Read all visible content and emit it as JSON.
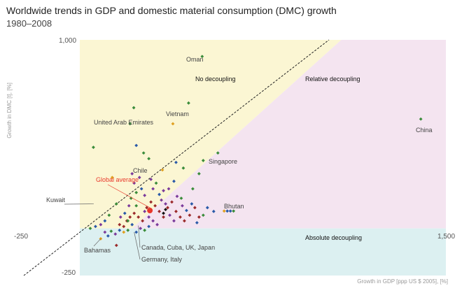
{
  "title": "Worldwide trends in GDP and domestic material consumption (DMC) growth",
  "subtitle": "1980–2008",
  "chart_data": {
    "type": "scatter",
    "title": "Worldwide trends in GDP and domestic material consumption (DMC) growth",
    "subtitle": "1980–2008",
    "xlabel": "Growth in GDP [ppp US $ 2005], [%]",
    "ylabel": "Growth in DMC [t], [%]",
    "xlim": [
      -250,
      1500
    ],
    "ylim": [
      -250,
      1000
    ],
    "x_ticks": [
      "-250",
      "1,500"
    ],
    "y_ticks": [
      "1,000",
      "-250"
    ],
    "regions": [
      {
        "label": "No decoupling",
        "color": "#fbf6d3"
      },
      {
        "label": "Relative decoupling",
        "color": "#f4e4f0"
      },
      {
        "label": "Absolute decoupling",
        "color": "#dcf0f1"
      }
    ],
    "reference_line": "GDP growth = DMC growth",
    "labeled_points": [
      {
        "label": "Oman",
        "x": 335,
        "y": 912
      },
      {
        "label": "Vietnam",
        "x": 270,
        "y": 665
      },
      {
        "label": "United Arab Emirates",
        "x": 8,
        "y": 640
      },
      {
        "label": "China",
        "x": 1380,
        "y": 580
      },
      {
        "label": "Singapore",
        "x": 410,
        "y": 400
      },
      {
        "label": "Chile",
        "x": 145,
        "y": 310
      },
      {
        "label": "Global average",
        "x": 85,
        "y": 95
      },
      {
        "label": "Kuwait",
        "x": -190,
        "y": 130
      },
      {
        "label": "Bhutan",
        "x": 455,
        "y": 92
      },
      {
        "label": "Bahamas",
        "x": -150,
        "y": -55
      },
      {
        "label": "Canada, Cuba, UK, Japan",
        "x": 30,
        "y": 15
      },
      {
        "label": "Germany, Italy",
        "x": 10,
        "y": -20
      }
    ],
    "points": [
      {
        "x": 335,
        "y": 912,
        "c": "#3a8c3a"
      },
      {
        "x": 270,
        "y": 665,
        "c": "#3a8c3a"
      },
      {
        "x": 8,
        "y": 640,
        "c": "#3a8c3a"
      },
      {
        "x": 1380,
        "y": 580,
        "c": "#3a8c3a"
      },
      {
        "x": 410,
        "y": 400,
        "c": "#3a8c3a"
      },
      {
        "x": -10,
        "y": 555,
        "c": "#3a8c3a"
      },
      {
        "x": -185,
        "y": 430,
        "c": "#3a8c3a"
      },
      {
        "x": 195,
        "y": 555,
        "c": "#e0a020"
      },
      {
        "x": 55,
        "y": 400,
        "c": "#3a8c3a"
      },
      {
        "x": 80,
        "y": 370,
        "c": "#3a8c3a"
      },
      {
        "x": 20,
        "y": 440,
        "c": "#2a5aa8"
      },
      {
        "x": 145,
        "y": 310,
        "c": "#e0a020"
      },
      {
        "x": 210,
        "y": 350,
        "c": "#2a5aa8"
      },
      {
        "x": 245,
        "y": 320,
        "c": "#3a8c3a"
      },
      {
        "x": 320,
        "y": 290,
        "c": "#3a8c3a"
      },
      {
        "x": 340,
        "y": 360,
        "c": "#3a8c3a"
      },
      {
        "x": 290,
        "y": 210,
        "c": "#3a8c3a"
      },
      {
        "x": 235,
        "y": 160,
        "c": "#3a8c3a"
      },
      {
        "x": 200,
        "y": 250,
        "c": "#2a5aa8"
      },
      {
        "x": 175,
        "y": 210,
        "c": "#7b3b9b"
      },
      {
        "x": 150,
        "y": 200,
        "c": "#7b3b9b"
      },
      {
        "x": 130,
        "y": 180,
        "c": "#2a5aa8"
      },
      {
        "x": 115,
        "y": 240,
        "c": "#3a8c3a"
      },
      {
        "x": 100,
        "y": 210,
        "c": "#7b3b9b"
      },
      {
        "x": 90,
        "y": 260,
        "c": "#7b3b9b"
      },
      {
        "x": 60,
        "y": 175,
        "c": "#7b3b9b"
      },
      {
        "x": 45,
        "y": 210,
        "c": "#2a5aa8"
      },
      {
        "x": 20,
        "y": 190,
        "c": "#3a8c3a"
      },
      {
        "x": -5,
        "y": 160,
        "c": "#3a8c3a"
      },
      {
        "x": -15,
        "y": 120,
        "c": "#7b3b9b"
      },
      {
        "x": -35,
        "y": 80,
        "c": "#2a5aa8"
      },
      {
        "x": -55,
        "y": 60,
        "c": "#7b3b9b"
      },
      {
        "x": -75,
        "y": 130,
        "c": "#3a8c3a"
      },
      {
        "x": -95,
        "y": 270,
        "c": "#e0a020"
      },
      {
        "x": -110,
        "y": 70,
        "c": "#3a8c3a"
      },
      {
        "x": -130,
        "y": 40,
        "c": "#2a5aa8"
      },
      {
        "x": -150,
        "y": 20,
        "c": "#7b3b9b"
      },
      {
        "x": -175,
        "y": 10,
        "c": "#2a5aa8"
      },
      {
        "x": -200,
        "y": 0,
        "c": "#3a8c3a"
      },
      {
        "x": -60,
        "y": 20,
        "c": "#9b2b2b"
      },
      {
        "x": -40,
        "y": 10,
        "c": "#9b2b2b"
      },
      {
        "x": -25,
        "y": 40,
        "c": "#9b2b2b"
      },
      {
        "x": -10,
        "y": 60,
        "c": "#9b2b2b"
      },
      {
        "x": 10,
        "y": 80,
        "c": "#9b2b2b"
      },
      {
        "x": 30,
        "y": 60,
        "c": "#9b2b2b"
      },
      {
        "x": 50,
        "y": 40,
        "c": "#9b2b2b"
      },
      {
        "x": 70,
        "y": 110,
        "c": "#9b2b2b"
      },
      {
        "x": 90,
        "y": 140,
        "c": "#9b2b2b"
      },
      {
        "x": 110,
        "y": 120,
        "c": "#9b2b2b"
      },
      {
        "x": 130,
        "y": 90,
        "c": "#9b2b2b"
      },
      {
        "x": 150,
        "y": 60,
        "c": "#9b2b2b"
      },
      {
        "x": 170,
        "y": 110,
        "c": "#9b2b2b"
      },
      {
        "x": 190,
        "y": 140,
        "c": "#9b2b2b"
      },
      {
        "x": 210,
        "y": 90,
        "c": "#9b2b2b"
      },
      {
        "x": 230,
        "y": 60,
        "c": "#9b2b2b"
      },
      {
        "x": 250,
        "y": 40,
        "c": "#9b2b2b"
      },
      {
        "x": 275,
        "y": 70,
        "c": "#9b2b2b"
      },
      {
        "x": 300,
        "y": 110,
        "c": "#9b2b2b"
      },
      {
        "x": 320,
        "y": 60,
        "c": "#9b2b2b"
      },
      {
        "x": 60,
        "y": 90,
        "c": "#7b3b9b"
      },
      {
        "x": 80,
        "y": 60,
        "c": "#7b3b9b"
      },
      {
        "x": 100,
        "y": 40,
        "c": "#7b3b9b"
      },
      {
        "x": 120,
        "y": 20,
        "c": "#7b3b9b"
      },
      {
        "x": 140,
        "y": 150,
        "c": "#7b3b9b"
      },
      {
        "x": 160,
        "y": 130,
        "c": "#7b3b9b"
      },
      {
        "x": 180,
        "y": 70,
        "c": "#7b3b9b"
      },
      {
        "x": 200,
        "y": 40,
        "c": "#7b3b9b"
      },
      {
        "x": 215,
        "y": 170,
        "c": "#7b3b9b"
      },
      {
        "x": 240,
        "y": 120,
        "c": "#7b3b9b"
      },
      {
        "x": 260,
        "y": 95,
        "c": "#2a5aa8"
      },
      {
        "x": 285,
        "y": 130,
        "c": "#2a5aa8"
      },
      {
        "x": 310,
        "y": 30,
        "c": "#2a5aa8"
      },
      {
        "x": 340,
        "y": 70,
        "c": "#3a8c3a"
      },
      {
        "x": 360,
        "y": 110,
        "c": "#2a5aa8"
      },
      {
        "x": 390,
        "y": 90,
        "c": "#2a5aa8"
      },
      {
        "x": 440,
        "y": 92,
        "c": "#e0a020"
      },
      {
        "x": 455,
        "y": 92,
        "c": "#2a5aa8"
      },
      {
        "x": 470,
        "y": 92,
        "c": "#2a5aa8"
      },
      {
        "x": 485,
        "y": 92,
        "c": "#3a8c3a"
      },
      {
        "x": 150,
        "y": 80,
        "c": "#111111"
      },
      {
        "x": 160,
        "y": 100,
        "c": "#111111"
      },
      {
        "x": 20,
        "y": 120,
        "c": "#3a8c3a"
      },
      {
        "x": 0,
        "y": 20,
        "c": "#2a5aa8"
      },
      {
        "x": -20,
        "y": -10,
        "c": "#3a8c3a"
      },
      {
        "x": -40,
        "y": -20,
        "c": "#e0a020"
      },
      {
        "x": -60,
        "y": -10,
        "c": "#2a5aa8"
      },
      {
        "x": -80,
        "y": -30,
        "c": "#7b3b9b"
      },
      {
        "x": -100,
        "y": -15,
        "c": "#3a8c3a"
      },
      {
        "x": -115,
        "y": -40,
        "c": "#2a5aa8"
      },
      {
        "x": -130,
        "y": -20,
        "c": "#7b3b9b"
      },
      {
        "x": -150,
        "y": -55,
        "c": "#e0a020"
      },
      {
        "x": -75,
        "y": -90,
        "c": "#9b2b2b"
      },
      {
        "x": -20,
        "y": 40,
        "c": "#3a8c3a"
      },
      {
        "x": 40,
        "y": 0,
        "c": "#7b3b9b"
      },
      {
        "x": 20,
        "y": -20,
        "c": "#2a5aa8"
      },
      {
        "x": 60,
        "y": -10,
        "c": "#3a8c3a"
      },
      {
        "x": 80,
        "y": 10,
        "c": "#2a5aa8"
      },
      {
        "x": 10,
        "y": 240,
        "c": "#7b3b9b"
      },
      {
        "x": 0,
        "y": 290,
        "c": "#7b3b9b"
      },
      {
        "x": 35,
        "y": 270,
        "c": "#7b3b9b"
      }
    ],
    "global_average": {
      "x": 85,
      "y": 95,
      "c": "#e8382a"
    }
  }
}
